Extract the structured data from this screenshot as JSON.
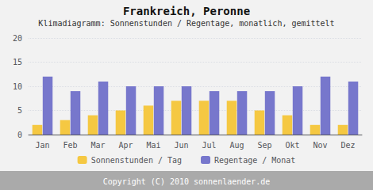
{
  "chart_data": {
    "type": "bar",
    "title": "Frankreich, Peronne",
    "subtitle": "Klimadiagramm: Sonnenstunden / Regentage, monatlich, gemittelt",
    "categories": [
      "Jan",
      "Feb",
      "Mar",
      "Apr",
      "Mai",
      "Jun",
      "Jul",
      "Aug",
      "Sep",
      "Okt",
      "Nov",
      "Dez"
    ],
    "series": [
      {
        "name": "Sonnenstunden / Tag",
        "color": "#f5c842",
        "values": [
          2,
          3,
          4,
          5,
          6,
          7,
          7,
          7,
          5,
          4,
          2,
          2
        ]
      },
      {
        "name": "Regentage / Monat",
        "color": "#7777cc",
        "values": [
          12,
          9,
          11,
          10,
          10,
          10,
          9,
          9,
          9,
          10,
          12,
          11
        ]
      }
    ],
    "ylim": [
      0,
      20
    ],
    "yticks": [
      0,
      5,
      10,
      15,
      20
    ],
    "grid": true,
    "legend": "bottom",
    "annotations": [
      "Copyright (C) 2010 sonnenlaender.de"
    ]
  }
}
